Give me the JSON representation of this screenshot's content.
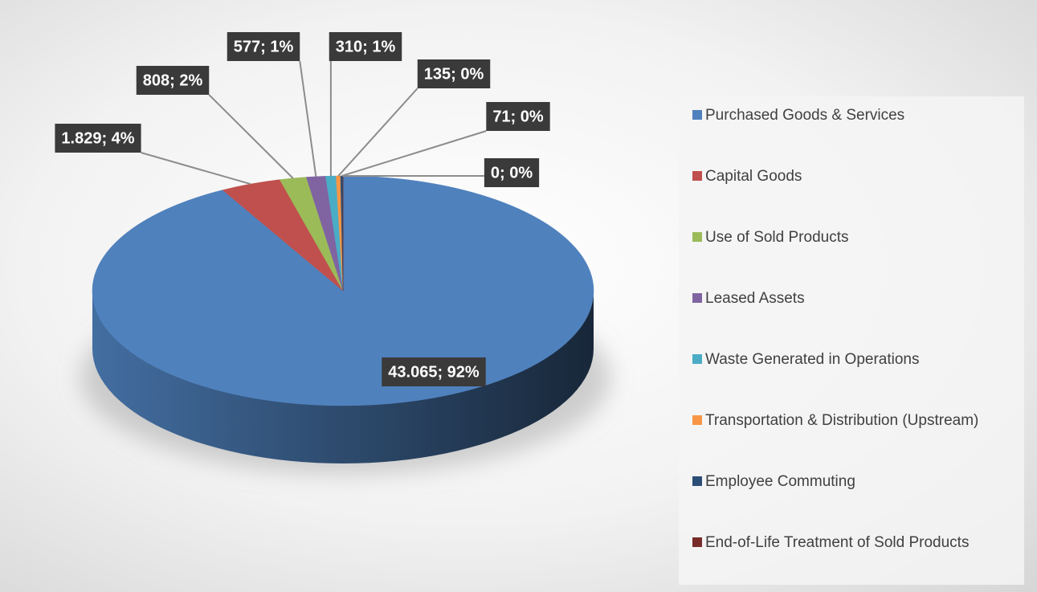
{
  "chart_data": {
    "type": "pie3d",
    "categories": [
      "Purchased Goods & Services",
      "Capital Goods",
      "Use of Sold Products",
      "Leased Assets",
      "Waste Generated in Operations",
      "Transportation & Distribution (Upstream)",
      "Employee Commuting",
      "End-of-Life Treatment of Sold Products"
    ],
    "values": [
      43065,
      1829,
      808,
      577,
      310,
      135,
      71,
      0
    ],
    "value_labels": [
      "43.065; 92%",
      "1.829; 4%",
      "808; 2%",
      "577; 1%",
      "310; 1%",
      "135; 0%",
      "71; 0%",
      "0; 0%"
    ],
    "colors": [
      "#4f81bd",
      "#c0504d",
      "#9bbb59",
      "#8064a2",
      "#4bacc6",
      "#f79646",
      "#2c4d75",
      "#772c2a"
    ],
    "legend": "right"
  }
}
